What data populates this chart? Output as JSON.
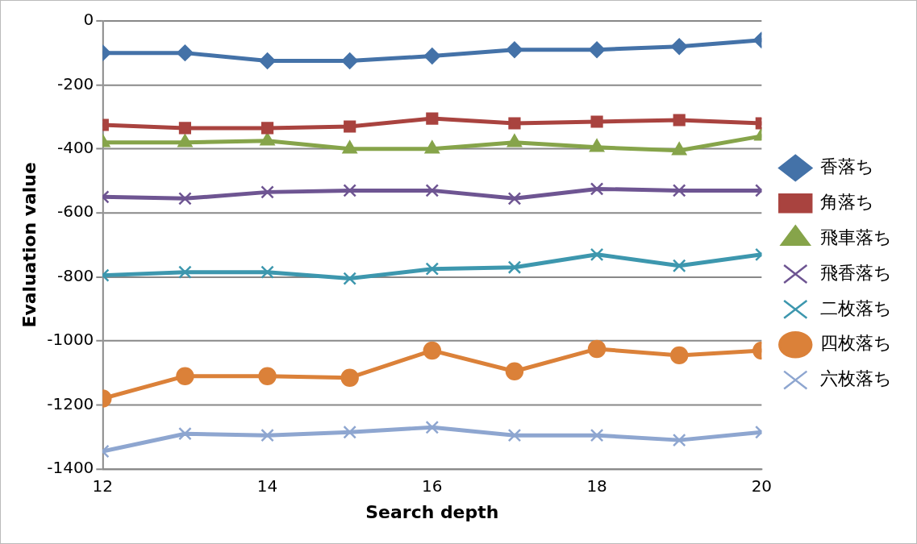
{
  "chart_data": {
    "type": "line",
    "xlabel": "Search depth",
    "ylabel": "Evaluation value",
    "x": [
      12,
      13,
      14,
      15,
      16,
      17,
      18,
      19,
      20
    ],
    "xlim": [
      12,
      20
    ],
    "xticks": [
      12,
      14,
      16,
      18,
      20
    ],
    "ylim": [
      -1400,
      0
    ],
    "yticks": [
      -1400,
      -1200,
      -1000,
      -800,
      -600,
      -400,
      -200,
      0
    ],
    "grid": "y",
    "legend": "right",
    "series": [
      {
        "name": "香落ち",
        "color": "#4472a8",
        "marker": "diamond",
        "values": [
          -100,
          -100,
          -125,
          -125,
          -110,
          -90,
          -90,
          -80,
          -60
        ]
      },
      {
        "name": "角落ち",
        "color": "#a9433f",
        "marker": "square",
        "values": [
          -325,
          -335,
          -335,
          -330,
          -305,
          -320,
          -315,
          -310,
          -320
        ]
      },
      {
        "name": "飛車落ち",
        "color": "#86a44a",
        "marker": "triangle",
        "values": [
          -380,
          -380,
          -375,
          -400,
          -400,
          -380,
          -395,
          -405,
          -360
        ]
      },
      {
        "name": "飛香落ち",
        "color": "#6e5592",
        "marker": "cross",
        "values": [
          -550,
          -555,
          -535,
          -530,
          -530,
          -555,
          -525,
          -530,
          -530
        ]
      },
      {
        "name": "二枚落ち",
        "color": "#3d97ae",
        "marker": "cross",
        "values": [
          -795,
          -785,
          -785,
          -805,
          -775,
          -770,
          -730,
          -765,
          -730
        ]
      },
      {
        "name": "四枚落ち",
        "color": "#db8139",
        "marker": "circle",
        "values": [
          -1180,
          -1110,
          -1110,
          -1115,
          -1030,
          -1095,
          -1025,
          -1045,
          -1030
        ]
      },
      {
        "name": "六枚落ち",
        "color": "#8ea6d0",
        "marker": "cross",
        "values": [
          -1345,
          -1290,
          -1295,
          -1285,
          -1270,
          -1295,
          -1295,
          -1310,
          -1285
        ]
      }
    ]
  }
}
